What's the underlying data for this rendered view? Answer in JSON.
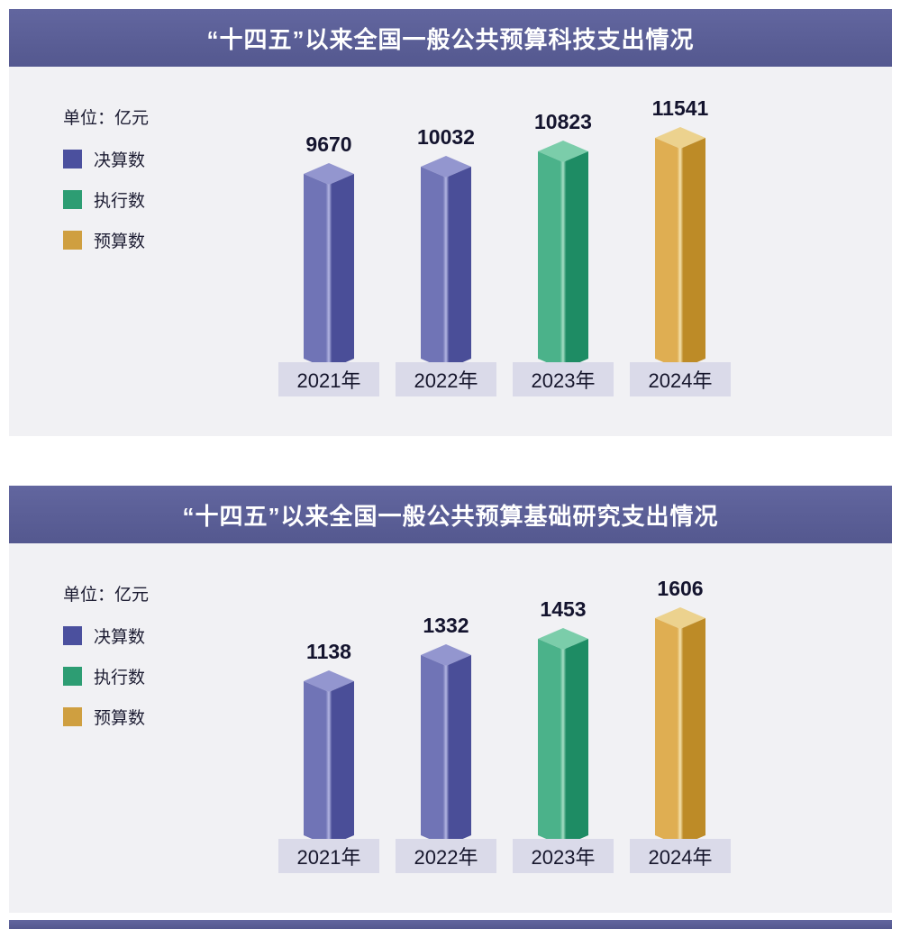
{
  "theme": {
    "header_gradient_start": "#62669f",
    "header_gradient_end": "#54588f",
    "panel_background": "#f1f1f4",
    "category_plate_background": "#dadae9",
    "text_dark": "#17172e",
    "title_text_color": "#ffffff"
  },
  "chart_data": [
    {
      "type": "bar",
      "title": "“十四五”以来全国一般公共预算科技支出情况",
      "unit_label": "单位：亿元",
      "categories": [
        "2021年",
        "2022年",
        "2023年",
        "2024年"
      ],
      "values": [
        9670,
        10032,
        10823,
        11541
      ],
      "bar_styles": [
        "final",
        "final",
        "executed",
        "budget"
      ],
      "ylim": [
        0,
        12000
      ],
      "grid": false,
      "legend_position": "left",
      "legend": [
        {
          "key": "final",
          "label": "决算数",
          "color": "#4b509e"
        },
        {
          "key": "executed",
          "label": "执行数",
          "color": "#2d9d73"
        },
        {
          "key": "budget",
          "label": "预算数",
          "color": "#cf9f40"
        }
      ]
    },
    {
      "type": "bar",
      "title": "“十四五”以来全国一般公共预算基础研究支出情况",
      "unit_label": "单位：亿元",
      "categories": [
        "2021年",
        "2022年",
        "2023年",
        "2024年"
      ],
      "values": [
        1138,
        1332,
        1453,
        1606
      ],
      "bar_styles": [
        "final",
        "final",
        "executed",
        "budget"
      ],
      "ylim": [
        0,
        1700
      ],
      "grid": false,
      "legend_position": "left",
      "legend": [
        {
          "key": "final",
          "label": "决算数",
          "color": "#4b509e"
        },
        {
          "key": "executed",
          "label": "执行数",
          "color": "#2d9d73"
        },
        {
          "key": "budget",
          "label": "预算数",
          "color": "#cf9f40"
        }
      ]
    }
  ],
  "bar_face_colors": {
    "final": {
      "left": "#7074b6",
      "right": "#4a4e98",
      "top": "#9396cf",
      "ridge": "#b3b6e2"
    },
    "executed": {
      "left": "#4bb28a",
      "right": "#1e8c64",
      "top": "#7bcdaa",
      "ridge": "#a5dfc5"
    },
    "budget": {
      "left": "#dfae52",
      "right": "#bd8b27",
      "top": "#ecd28e",
      "ridge": "#f5e2ad"
    }
  }
}
